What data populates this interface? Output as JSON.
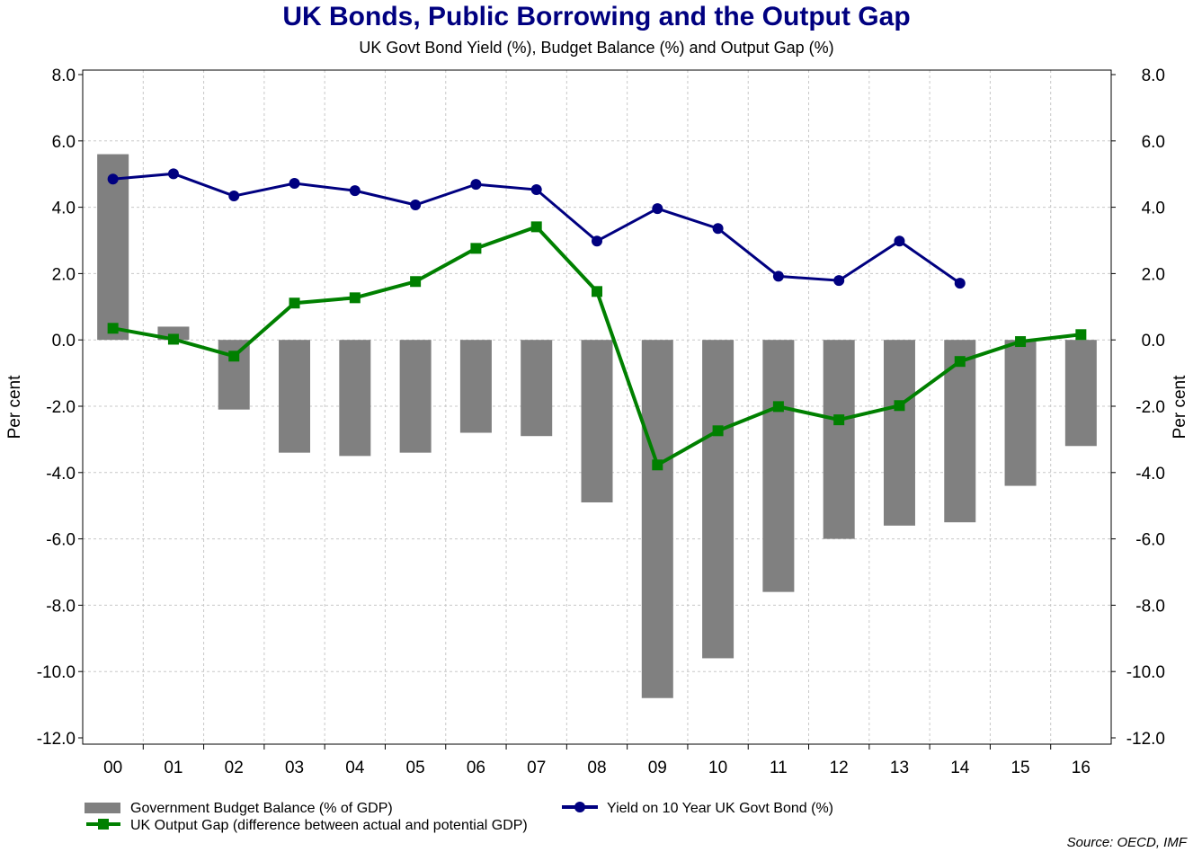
{
  "chart_data": {
    "type": "bar",
    "title": "UK Bonds, Public Borrowing and the Output Gap",
    "subtitle": "UK Govt Bond Yield (%), Budget Balance (%) and Output Gap (%)",
    "ylabel": "Per cent",
    "ylabel_right": "Per cent",
    "xlabel": "",
    "ylim": [
      -12,
      8
    ],
    "yticks": [
      "8.0",
      "6.0",
      "4.0",
      "2.0",
      "0.0",
      "-2.0",
      "-4.0",
      "-6.0",
      "-8.0",
      "-10.0",
      "-12.0"
    ],
    "grid": true,
    "legend_placement": "bottom",
    "categories": [
      "00",
      "01",
      "02",
      "03",
      "04",
      "05",
      "06",
      "07",
      "08",
      "09",
      "10",
      "11",
      "12",
      "13",
      "14",
      "15",
      "16"
    ],
    "series": [
      {
        "name": "Government Budget Balance (% of GDP)",
        "kind": "bar",
        "color": "#808080",
        "values": [
          5.6,
          0.4,
          -2.1,
          -3.4,
          -3.5,
          -3.4,
          -2.8,
          -2.9,
          -4.9,
          -10.8,
          -9.6,
          -7.6,
          -6.0,
          -5.6,
          -5.5,
          -4.4,
          -3.2
        ]
      },
      {
        "name": "UK Output Gap (difference between actual and potential GDP)",
        "kind": "line-square",
        "color": "#008000",
        "values": [
          0.35,
          0.02,
          -0.49,
          1.11,
          1.27,
          1.76,
          2.76,
          3.41,
          1.46,
          -3.77,
          -2.74,
          -2.01,
          -2.41,
          -1.98,
          -0.65,
          -0.05,
          0.16
        ]
      },
      {
        "name": "Yield on 10 Year UK Govt Bond (%)",
        "kind": "line-circle",
        "color": "#000080",
        "values": [
          4.85,
          5.01,
          4.34,
          4.72,
          4.5,
          4.07,
          4.69,
          4.53,
          2.98,
          3.96,
          3.36,
          1.92,
          1.79,
          2.98,
          1.71,
          null,
          null
        ]
      }
    ],
    "source": "Source: OECD, IMF"
  }
}
